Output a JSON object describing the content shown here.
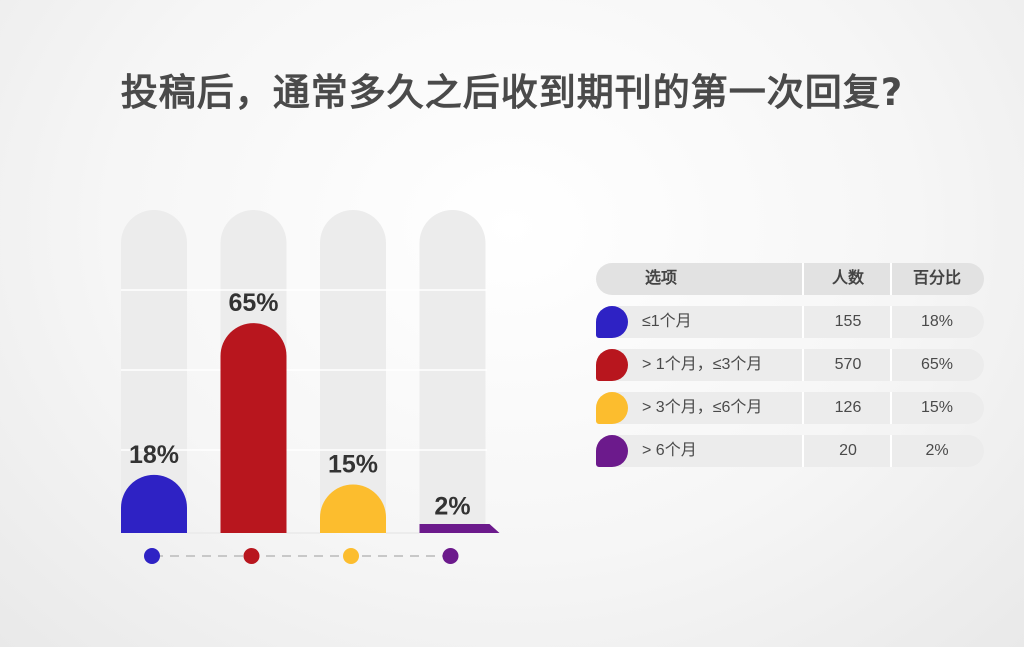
{
  "chart_data": {
    "type": "bar",
    "title": "投稿后，通常多久之后收到期刊的第一次回复?",
    "categories": [
      "≤1个月",
      "> 1个月，≤3个月",
      "> 3个月，≤6个月",
      "> 6个月"
    ],
    "values": [
      18,
      65,
      15,
      2
    ],
    "value_labels": [
      "18%",
      "65%",
      "15%",
      "2%"
    ],
    "colors": [
      "#2e22c4",
      "#b8161e",
      "#fcbd2e",
      "#6c1a8c"
    ],
    "ylim": [
      0,
      100
    ],
    "grid": true,
    "legend": "right table"
  },
  "table": {
    "headers": [
      "选项",
      "人数",
      "百分比"
    ],
    "rows": [
      {
        "option": "≤1个月",
        "count": "155",
        "percent": "18%",
        "color": "#2e22c4"
      },
      {
        "option": "> 1个月，≤3个月",
        "count": "570",
        "percent": "65%",
        "color": "#b8161e"
      },
      {
        "option": "> 3个月，≤6个月",
        "count": "126",
        "percent": "15%",
        "color": "#fcbd2e"
      },
      {
        "option": "> 6个月",
        "count": "20",
        "percent": "2%",
        "color": "#6c1a8c"
      }
    ]
  }
}
